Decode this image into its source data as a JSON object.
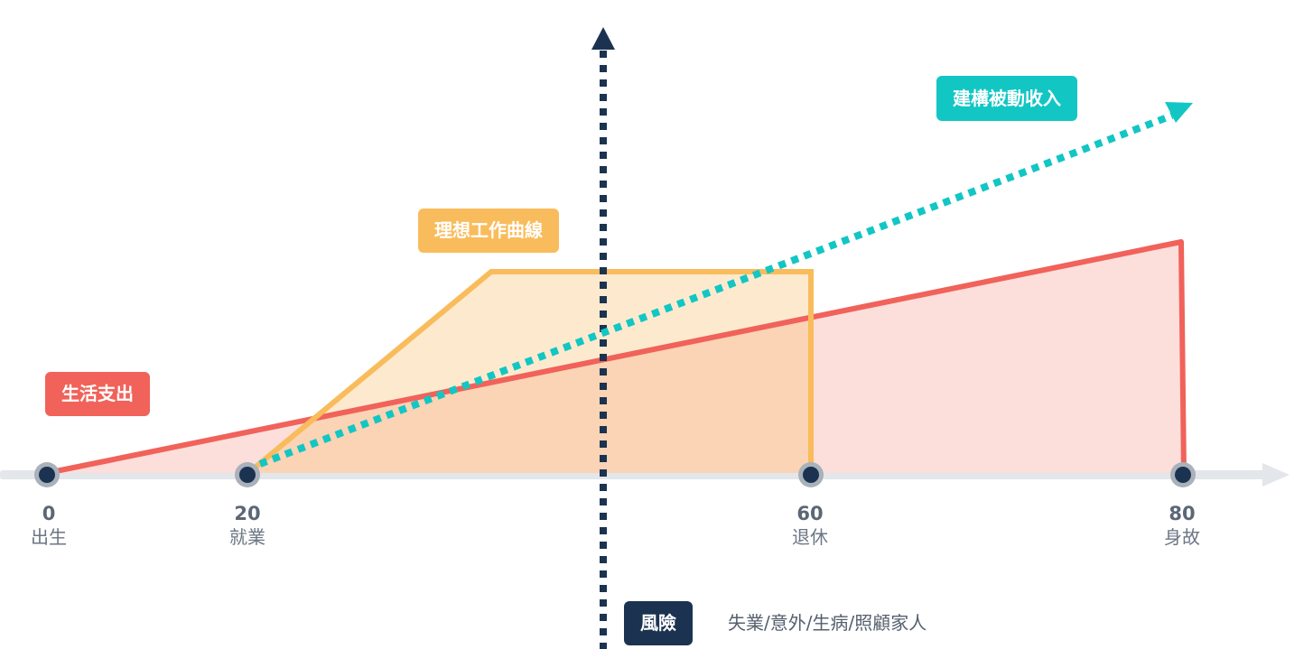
{
  "labels": {
    "expense": "生活支出",
    "ideal_work": "理想工作曲線",
    "passive_income": "建構被動收入",
    "risk": "風險",
    "risk_desc": "失業/意外/生病/照顧家人"
  },
  "milestones": [
    {
      "age": "0",
      "label": "出生"
    },
    {
      "age": "20",
      "label": "就業"
    },
    {
      "age": "60",
      "label": "退休"
    },
    {
      "age": "80",
      "label": "身故"
    }
  ],
  "colors": {
    "expense": "#f0625a",
    "expense_fill": "#fcdedb",
    "ideal_work": "#f9bc5c",
    "ideal_work_fill": "#fdeed1",
    "passive_income": "#12c6c4",
    "risk": "#1b3350",
    "axis": "#e3e6ea",
    "node": "#1b3350",
    "node_ring": "#a9b1bb"
  }
}
